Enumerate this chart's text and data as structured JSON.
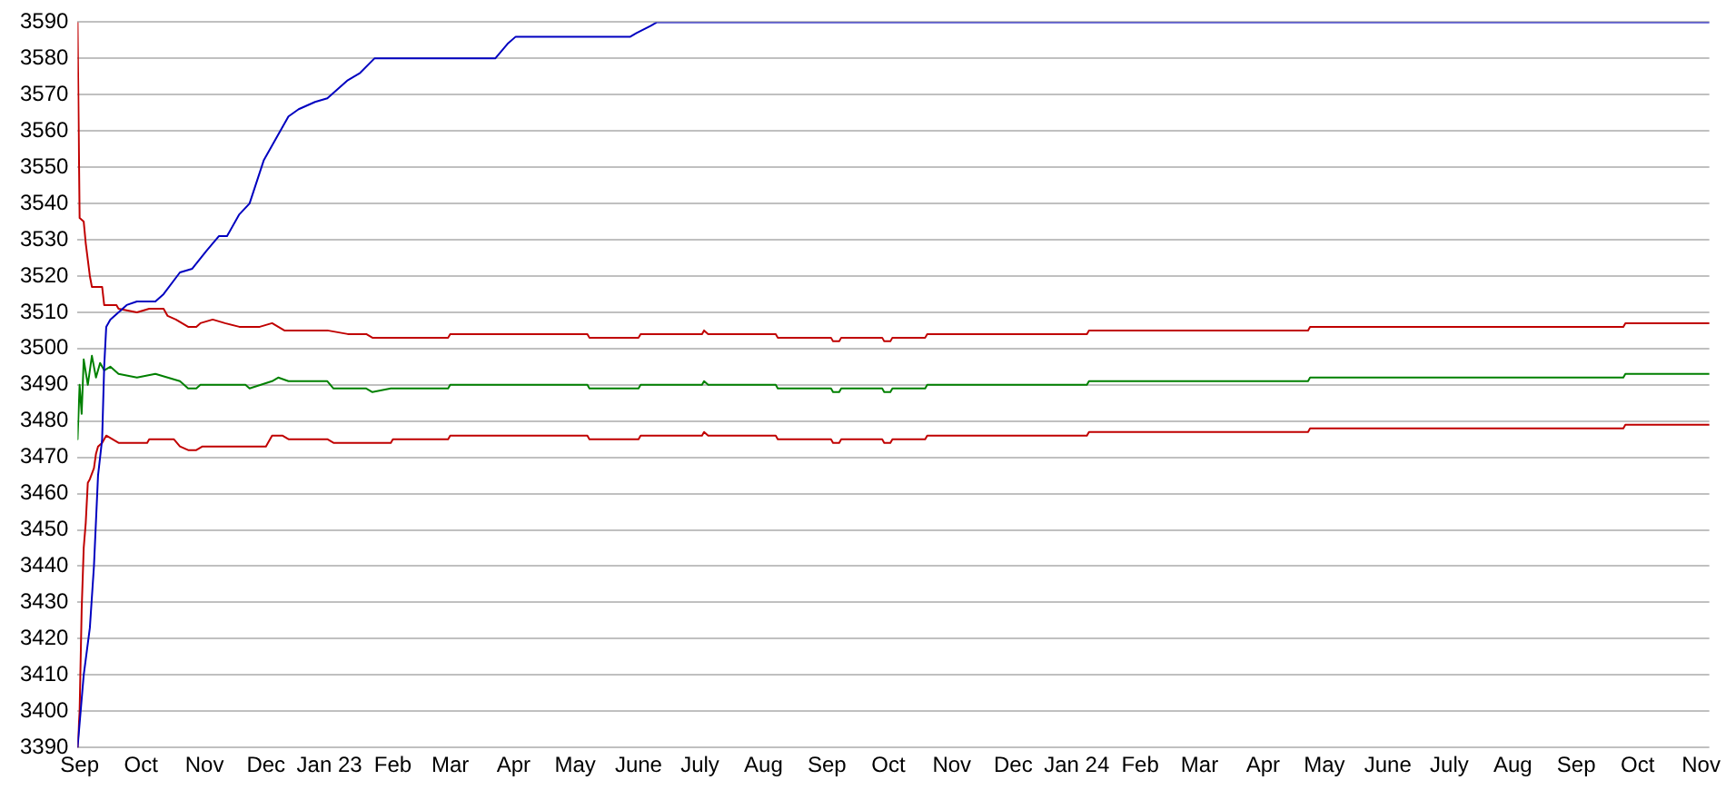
{
  "chart_data": {
    "type": "line",
    "series": [
      {
        "color": "#0000c0",
        "x": [
          "2022-08-31",
          "2022-09-03",
          "2022-09-06",
          "2022-09-08",
          "2022-09-10",
          "2022-09-12",
          "2022-09-13",
          "2022-09-14",
          "2022-09-16",
          "2022-09-20",
          "2022-09-24",
          "2022-09-29",
          "2022-10-08",
          "2022-10-12",
          "2022-10-20",
          "2022-10-26",
          "2022-11-02",
          "2022-11-08",
          "2022-11-12",
          "2022-11-18",
          "2022-11-23",
          "2022-11-30",
          "2022-12-04",
          "2022-12-09",
          "2022-12-12",
          "2022-12-17",
          "2022-12-25",
          "2022-12-31",
          "2023-01-04",
          "2023-01-10",
          "2023-01-16",
          "2023-01-23",
          "2023-03-23",
          "2023-03-29",
          "2023-04-02",
          "2023-05-28",
          "2023-05-31",
          "2023-06-07",
          "2023-06-10",
          "2024-11-05"
        ],
        "values": [
          3390,
          3410,
          3423,
          3440,
          3465,
          3475,
          3495,
          3506,
          3508,
          3510,
          3512,
          3513,
          3513,
          3515,
          3521,
          3522,
          3527,
          3531,
          3531,
          3537,
          3540,
          3552,
          3556,
          3561,
          3564,
          3566,
          3568,
          3569,
          3571,
          3574,
          3576,
          3580,
          3580,
          3584,
          3586,
          3586,
          3587,
          3589,
          3590,
          3590
        ]
      },
      {
        "color": "#c00000",
        "x": [
          "2022-08-31",
          "2022-09-01",
          "2022-09-03",
          "2022-09-04",
          "2022-09-06",
          "2022-09-07",
          "2022-09-12",
          "2022-09-13",
          "2022-09-19",
          "2022-09-20",
          "2022-09-29",
          "2022-10-05",
          "2022-10-12",
          "2022-10-14",
          "2022-10-18",
          "2022-10-24",
          "2022-10-28",
          "2022-10-30",
          "2022-11-05",
          "2022-11-11",
          "2022-11-18",
          "2022-11-28",
          "2022-12-04",
          "2022-12-10",
          "2022-12-31",
          "2023-01-10",
          "2023-01-19",
          "2023-01-22",
          "2023-02-28",
          "2023-03-01",
          "2023-05-07",
          "2023-05-08",
          "2023-06-01",
          "2023-06-02",
          "2023-07-02",
          "2023-07-03",
          "2023-07-05",
          "2023-08-07",
          "2023-08-08",
          "2023-09-03",
          "2023-09-04",
          "2023-09-07",
          "2023-09-08",
          "2023-09-28",
          "2023-09-29",
          "2023-10-02",
          "2023-10-03",
          "2023-10-19",
          "2023-10-20",
          "2024-01-06",
          "2024-01-07",
          "2024-04-23",
          "2024-04-24",
          "2024-09-24",
          "2024-09-25",
          "2024-11-05"
        ],
        "values": [
          3590,
          3536,
          3535,
          3529,
          3520,
          3517,
          3517,
          3512,
          3512,
          3511,
          3510,
          3511,
          3511,
          3509,
          3508,
          3506,
          3506,
          3507,
          3508,
          3507,
          3506,
          3506,
          3507,
          3505,
          3505,
          3504,
          3504,
          3503,
          3503,
          3504,
          3504,
          3503,
          3503,
          3504,
          3504,
          3505,
          3504,
          3504,
          3503,
          3503,
          3502,
          3502,
          3503,
          3503,
          3502,
          3502,
          3503,
          3503,
          3504,
          3504,
          3505,
          3505,
          3506,
          3506,
          3507,
          3507
        ]
      },
      {
        "color": "#008000",
        "x": [
          "2022-08-31",
          "2022-09-01",
          "2022-09-02",
          "2022-09-03",
          "2022-09-05",
          "2022-09-07",
          "2022-09-09",
          "2022-09-11",
          "2022-09-13",
          "2022-09-16",
          "2022-09-20",
          "2022-09-29",
          "2022-10-08",
          "2022-10-14",
          "2022-10-20",
          "2022-10-24",
          "2022-10-28",
          "2022-10-30",
          "2022-11-21",
          "2022-11-23",
          "2022-12-04",
          "2022-12-07",
          "2022-12-12",
          "2022-12-31",
          "2023-01-03",
          "2023-01-19",
          "2023-01-22",
          "2023-01-31",
          "2023-02-28",
          "2023-03-01",
          "2023-05-07",
          "2023-05-08",
          "2023-06-01",
          "2023-06-02",
          "2023-07-02",
          "2023-07-03",
          "2023-07-05",
          "2023-08-07",
          "2023-08-08",
          "2023-09-03",
          "2023-09-04",
          "2023-09-07",
          "2023-09-08",
          "2023-09-28",
          "2023-09-29",
          "2023-10-02",
          "2023-10-03",
          "2023-10-19",
          "2023-10-20",
          "2024-01-06",
          "2024-01-07",
          "2024-04-23",
          "2024-04-24",
          "2024-09-24",
          "2024-09-25",
          "2024-11-05"
        ],
        "values": [
          3475,
          3490,
          3482,
          3497,
          3490,
          3498,
          3492,
          3496,
          3494,
          3495,
          3493,
          3492,
          3493,
          3492,
          3491,
          3489,
          3489,
          3490,
          3490,
          3489,
          3491,
          3492,
          3491,
          3491,
          3489,
          3489,
          3488,
          3489,
          3489,
          3490,
          3490,
          3489,
          3489,
          3490,
          3490,
          3491,
          3490,
          3490,
          3489,
          3489,
          3488,
          3488,
          3489,
          3489,
          3488,
          3488,
          3489,
          3489,
          3490,
          3490,
          3491,
          3491,
          3492,
          3492,
          3493,
          3493
        ]
      },
      {
        "color": "#c00000",
        "x": [
          "2022-08-31",
          "2022-09-01",
          "2022-09-02",
          "2022-09-03",
          "2022-09-04",
          "2022-09-05",
          "2022-09-06",
          "2022-09-08",
          "2022-09-09",
          "2022-09-10",
          "2022-09-12",
          "2022-09-13",
          "2022-09-14",
          "2022-09-20",
          "2022-10-04",
          "2022-10-05",
          "2022-10-17",
          "2022-10-20",
          "2022-10-24",
          "2022-10-28",
          "2022-10-31",
          "2022-12-01",
          "2022-12-04",
          "2022-12-09",
          "2022-12-12",
          "2022-12-31",
          "2023-01-03",
          "2023-01-31",
          "2023-02-01",
          "2023-02-28",
          "2023-03-01",
          "2023-05-07",
          "2023-05-08",
          "2023-06-01",
          "2023-06-02",
          "2023-07-02",
          "2023-07-03",
          "2023-07-05",
          "2023-08-07",
          "2023-08-08",
          "2023-09-03",
          "2023-09-04",
          "2023-09-07",
          "2023-09-08",
          "2023-09-28",
          "2023-09-29",
          "2023-10-02",
          "2023-10-03",
          "2023-10-19",
          "2023-10-20",
          "2024-01-06",
          "2024-01-07",
          "2024-04-23",
          "2024-04-24",
          "2024-09-24",
          "2024-09-25",
          "2024-11-05"
        ],
        "values": [
          3390,
          3400,
          3428,
          3445,
          3452,
          3463,
          3464,
          3467,
          3471,
          3473,
          3474,
          3475,
          3476,
          3474,
          3474,
          3475,
          3475,
          3473,
          3472,
          3472,
          3473,
          3473,
          3476,
          3476,
          3475,
          3475,
          3474,
          3474,
          3475,
          3475,
          3476,
          3476,
          3475,
          3475,
          3476,
          3476,
          3477,
          3476,
          3476,
          3475,
          3475,
          3474,
          3474,
          3475,
          3475,
          3474,
          3474,
          3475,
          3475,
          3476,
          3476,
          3477,
          3477,
          3478,
          3478,
          3479,
          3479
        ]
      }
    ],
    "xlim": [
      "2022-08-31",
      "2024-11-05"
    ],
    "xticks": [
      {
        "value": "2022-09-01",
        "label": "Sep"
      },
      {
        "value": "2022-10-01",
        "label": "Oct"
      },
      {
        "value": "2022-11-01",
        "label": "Nov"
      },
      {
        "value": "2022-12-01",
        "label": "Dec"
      },
      {
        "value": "2023-01-01",
        "label": "Jan 23"
      },
      {
        "value": "2023-02-01",
        "label": "Feb"
      },
      {
        "value": "2023-03-01",
        "label": "Mar"
      },
      {
        "value": "2023-04-01",
        "label": "Apr"
      },
      {
        "value": "2023-05-01",
        "label": "May"
      },
      {
        "value": "2023-06-01",
        "label": "June"
      },
      {
        "value": "2023-07-01",
        "label": "July"
      },
      {
        "value": "2023-08-01",
        "label": "Aug"
      },
      {
        "value": "2023-09-01",
        "label": "Sep"
      },
      {
        "value": "2023-10-01",
        "label": "Oct"
      },
      {
        "value": "2023-11-01",
        "label": "Nov"
      },
      {
        "value": "2023-12-01",
        "label": "Dec"
      },
      {
        "value": "2024-01-01",
        "label": "Jan 24"
      },
      {
        "value": "2024-02-01",
        "label": "Feb"
      },
      {
        "value": "2024-03-01",
        "label": "Mar"
      },
      {
        "value": "2024-04-01",
        "label": "Apr"
      },
      {
        "value": "2024-05-01",
        "label": "May"
      },
      {
        "value": "2024-06-01",
        "label": "June"
      },
      {
        "value": "2024-07-01",
        "label": "July"
      },
      {
        "value": "2024-08-01",
        "label": "Aug"
      },
      {
        "value": "2024-09-01",
        "label": "Sep"
      },
      {
        "value": "2024-10-01",
        "label": "Oct"
      },
      {
        "value": "2024-11-01",
        "label": "Nov"
      }
    ],
    "ylim": [
      3390,
      3590
    ],
    "yticks": [
      3390,
      3400,
      3410,
      3420,
      3430,
      3440,
      3450,
      3460,
      3470,
      3480,
      3490,
      3500,
      3510,
      3520,
      3530,
      3540,
      3550,
      3560,
      3570,
      3580,
      3590
    ],
    "grid": "y",
    "legend": false,
    "marker": "none"
  }
}
